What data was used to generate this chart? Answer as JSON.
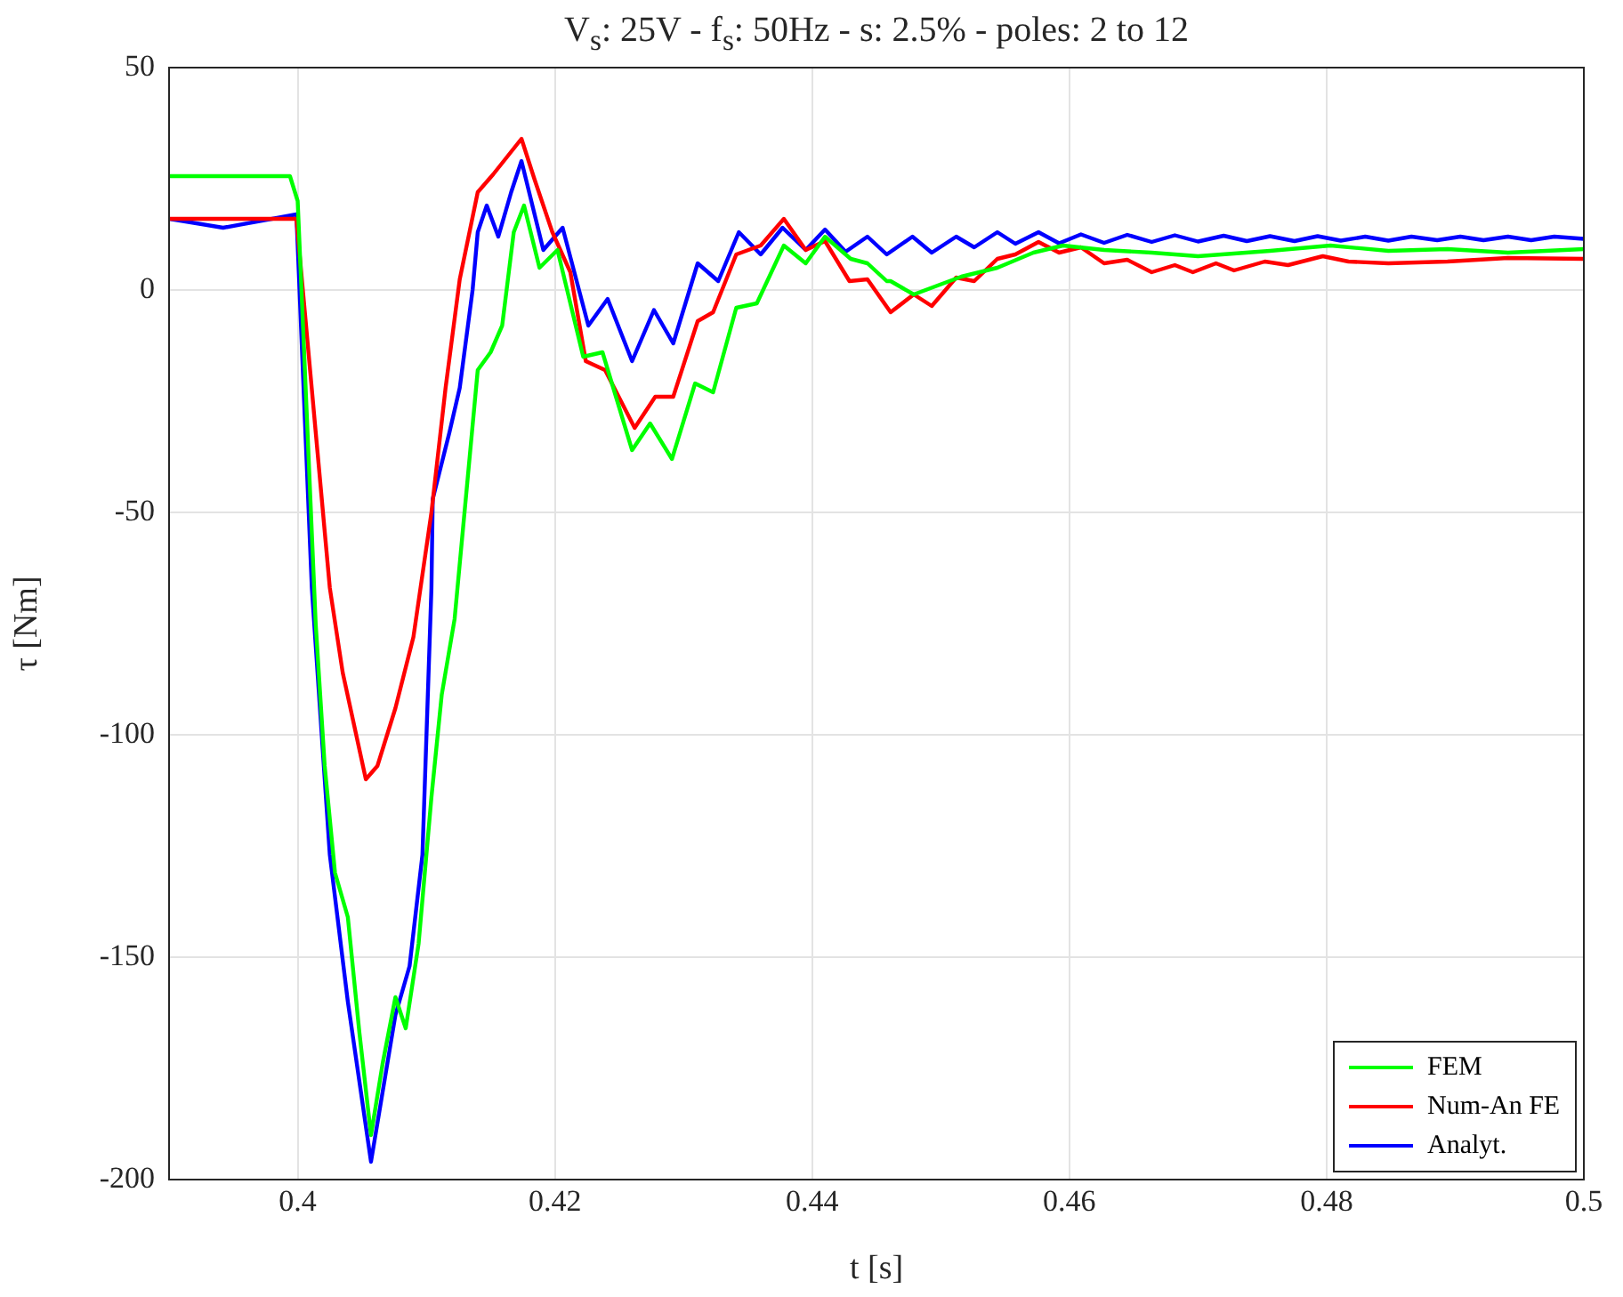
{
  "chart_data": {
    "type": "line",
    "title": "V$_{s}$: 25V - f$_{s}$: 50Hz - s: 2.5% - poles: 2 to 12",
    "xlabel": "t [s]",
    "ylabel": "τ [Nm]",
    "xlim": [
      0.39,
      0.5
    ],
    "xticks": [
      0.4,
      0.42,
      0.44,
      0.46,
      0.48,
      0.5
    ],
    "ylim": [
      -200,
      50
    ],
    "yticks": [
      -200,
      -150,
      -100,
      -50,
      0,
      50
    ],
    "grid": true,
    "legend": "bottom right",
    "marker": "none",
    "line_style": "solid",
    "series": [
      {
        "name": "FEM",
        "color": "#00ff00",
        "x": [
          0.39,
          0.3994,
          0.4,
          0.4014,
          0.4021,
          0.4029,
          0.4039,
          0.4048,
          0.4057,
          0.4066,
          0.4076,
          0.4084,
          0.4094,
          0.4104,
          0.4112,
          0.4122,
          0.414,
          0.415,
          0.4159,
          0.4168,
          0.4176,
          0.4188,
          0.4202,
          0.4222,
          0.4237,
          0.426,
          0.4274,
          0.4291,
          0.4309,
          0.4323,
          0.4341,
          0.4357,
          0.4378,
          0.4395,
          0.441,
          0.443,
          0.4443,
          0.4458,
          0.4461,
          0.4479,
          0.4516,
          0.4544,
          0.4572,
          0.4595,
          0.4627,
          0.4664,
          0.47,
          0.4756,
          0.4803,
          0.4848,
          0.4894,
          0.4941,
          0.5
        ],
        "values": [
          25.6,
          25.6,
          20,
          -75,
          -107,
          -131,
          -141,
          -167,
          -190,
          -174,
          -159,
          -166,
          -147,
          -114,
          -91,
          -74,
          -18,
          -14,
          -8,
          13,
          19,
          5,
          9,
          -15,
          -14,
          -36,
          -30,
          -38,
          -21,
          -23,
          -4,
          -3,
          10,
          6,
          12,
          7,
          6,
          2,
          2,
          -1,
          3,
          5,
          8.4,
          10,
          9,
          8.4,
          7.6,
          8.8,
          10,
          8.8,
          9.2,
          8.4,
          9.2
        ]
      },
      {
        "name": "Num-An FE",
        "color": "#ff0000",
        "x": [
          0.39,
          0.3999,
          0.4025,
          0.4035,
          0.4053,
          0.4062,
          0.4076,
          0.409,
          0.4104,
          0.4115,
          0.4126,
          0.414,
          0.4152,
          0.4163,
          0.4174,
          0.4184,
          0.4198,
          0.4212,
          0.4224,
          0.4239,
          0.4262,
          0.4278,
          0.4292,
          0.4311,
          0.4323,
          0.4341,
          0.436,
          0.4378,
          0.4395,
          0.441,
          0.4429,
          0.4443,
          0.4461,
          0.4479,
          0.4493,
          0.4512,
          0.4526,
          0.4544,
          0.4558,
          0.4576,
          0.4592,
          0.4609,
          0.4627,
          0.4645,
          0.4664,
          0.4682,
          0.4696,
          0.4714,
          0.4728,
          0.4752,
          0.477,
          0.4797,
          0.4817,
          0.4848,
          0.4894,
          0.4941,
          0.5
        ],
        "values": [
          16,
          16,
          -67,
          -86,
          -110,
          -107,
          -94,
          -78,
          -50,
          -22,
          2.4,
          22,
          26,
          30,
          34,
          25,
          13,
          4,
          -16,
          -18,
          -31,
          -24,
          -24,
          -7,
          -5,
          8,
          10,
          16,
          9,
          11,
          2,
          2.4,
          -5,
          -1,
          -3.6,
          2.8,
          2,
          7,
          8,
          10.8,
          8.4,
          9.6,
          6,
          6.8,
          4,
          5.6,
          4,
          6,
          4.4,
          6.4,
          5.6,
          7.6,
          6.4,
          6,
          6.4,
          7.2,
          7
        ]
      },
      {
        "name": "Analyt.",
        "color": "#0000ff",
        "x": [
          0.39,
          0.3942,
          0.3999,
          0.4011,
          0.4025,
          0.4039,
          0.4057,
          0.4076,
          0.4087,
          0.4097,
          0.4104,
          0.4105,
          0.4118,
          0.4126,
          0.4136,
          0.414,
          0.4147,
          0.4156,
          0.4166,
          0.4174,
          0.4191,
          0.4206,
          0.4226,
          0.4241,
          0.426,
          0.4277,
          0.4292,
          0.4311,
          0.4327,
          0.4343,
          0.436,
          0.4377,
          0.4395,
          0.441,
          0.4426,
          0.4443,
          0.4458,
          0.4478,
          0.4493,
          0.4512,
          0.4526,
          0.4544,
          0.4558,
          0.4576,
          0.4592,
          0.4609,
          0.4627,
          0.4645,
          0.4664,
          0.4682,
          0.47,
          0.472,
          0.4738,
          0.4756,
          0.4775,
          0.4793,
          0.4811,
          0.483,
          0.4848,
          0.4866,
          0.4886,
          0.4904,
          0.4922,
          0.4941,
          0.4959,
          0.4977,
          0.5
        ],
        "values": [
          16,
          14,
          17,
          -67,
          -127,
          -160,
          -196,
          -163,
          -152,
          -127,
          -67,
          -47,
          -32,
          -22,
          0,
          13,
          19,
          12,
          22,
          29,
          9,
          14,
          -8,
          -2,
          -16,
          -4.5,
          -12,
          6,
          2,
          13,
          8,
          14,
          9,
          13.6,
          8.6,
          12,
          8,
          12,
          8.4,
          12,
          9.6,
          13,
          10.4,
          13,
          10.5,
          12.5,
          10.6,
          12.4,
          10.8,
          12.3,
          10.9,
          12.2,
          11,
          12.1,
          11,
          12.1,
          11.1,
          12,
          11.1,
          12,
          11.2,
          12,
          11.2,
          12,
          11.2,
          12,
          11.5
        ]
      }
    ]
  }
}
